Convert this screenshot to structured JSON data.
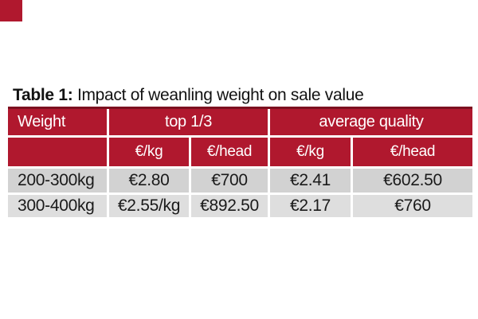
{
  "colors": {
    "page_bg": "#ffffff",
    "accent_red": "#b0182e",
    "table_top_border": "#7d1120",
    "header_text": "#ffffff",
    "row_first_bg": "#d2d2d2",
    "row_second_bg": "#dedede",
    "body_text": "#1a1a1a",
    "divider": "#ffffff"
  },
  "decor": {
    "corner_square": "red-accent-square"
  },
  "title": {
    "prefix": "Table 1:",
    "rest": " Impact of weanling weight on sale value"
  },
  "table": {
    "group_header": {
      "weight": "Weight",
      "top_third": "top 1/3",
      "average_quality": "average quality"
    },
    "unit_header": {
      "col0": "",
      "top_eur_kg": "€/kg",
      "top_eur_head": "€/head",
      "avg_eur_kg": "€/kg",
      "avg_eur_head": "€/head"
    },
    "rows": [
      {
        "weight": "200-300kg",
        "top_eur_kg": "€2.80",
        "top_eur_head": "€700",
        "avg_eur_kg": "€2.41",
        "avg_eur_head": "€602.50"
      },
      {
        "weight": "300-400kg",
        "top_eur_kg": "€2.55/kg",
        "top_eur_head": "€892.50",
        "avg_eur_kg": "€2.17",
        "avg_eur_head": "€760"
      }
    ]
  },
  "chart_data": {
    "type": "table",
    "title": "Table 1: Impact of weanling weight on sale value",
    "columns": [
      "Weight",
      "top 1/3 €/kg",
      "top 1/3 €/head",
      "average quality €/kg",
      "average quality €/head"
    ],
    "rows": [
      [
        "200-300kg",
        "€2.80",
        "€700",
        "€2.41",
        "€602.50"
      ],
      [
        "300-400kg",
        "€2.55/kg",
        "€892.50",
        "€2.17",
        "€760"
      ]
    ]
  }
}
